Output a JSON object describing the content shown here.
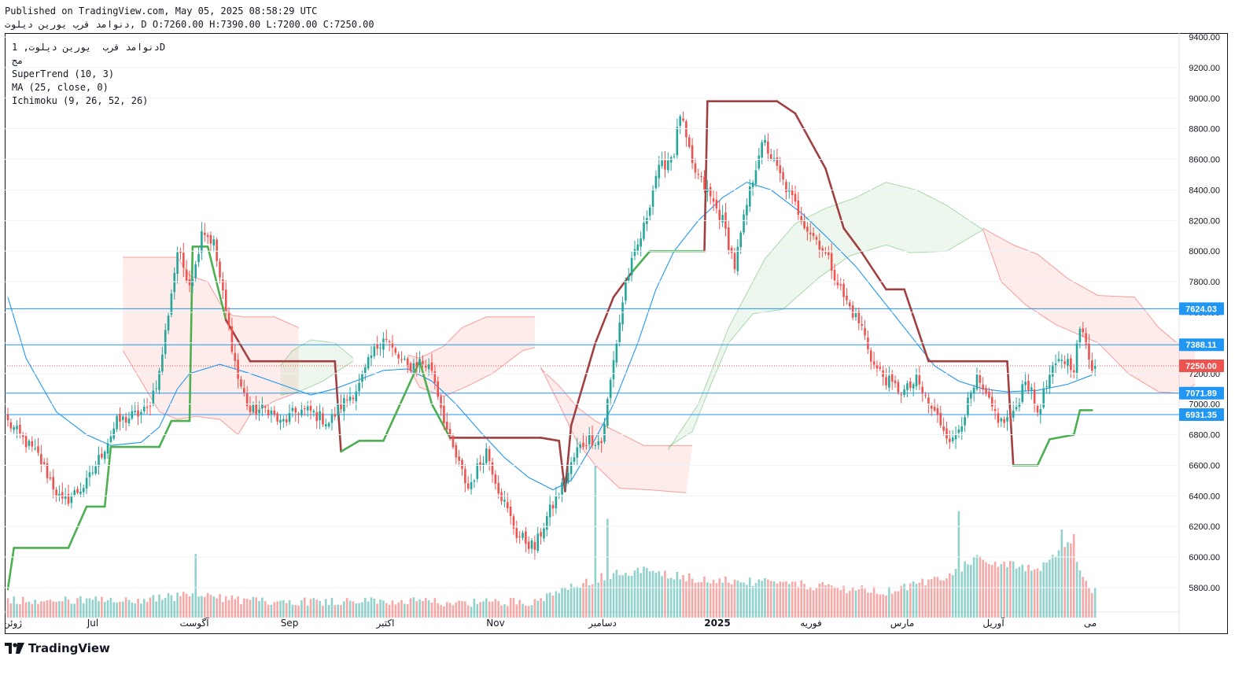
{
  "header": {
    "published": "Published on TradingView.com, May 05, 2025 08:58:29 UTC",
    "ohlc": "دنوامد قرب یورین دیلوت, D O:7260.00 H:7390.00 L:7200.00 C:7250.00"
  },
  "legend": {
    "symbol_line": "دنوامد قرب  یورین دیلوت, 1D",
    "secondary": "مج",
    "indicator_1": "SuperTrend (10, 3)",
    "indicator_2": "MA (25, close, 0)",
    "indicator_3": "Ichimoku (9, 26, 52, 26)"
  },
  "branding": {
    "logo_text": "TradingView"
  },
  "colors": {
    "up": "#26a69a",
    "down": "#ef5350",
    "supertrend_up": "#4caf50",
    "supertrend_down": "#a04040",
    "ma": "#2196f3",
    "hline": "#2196f3",
    "last_price": "#ef5350"
  },
  "chart_data": {
    "type": "candlestick",
    "title": "",
    "y_axis": {
      "min": 5620,
      "max": 9400,
      "ticks": [
        "9400.00",
        "9200.00",
        "9000.00",
        "8800.00",
        "8600.00",
        "8400.00",
        "8200.00",
        "8000.00",
        "7800.00",
        "7600.00",
        "7400.00",
        "7200.00",
        "7000.00",
        "6800.00",
        "6600.00",
        "6400.00",
        "6200.00",
        "6000.00",
        "5800.00"
      ]
    },
    "x_axis": {
      "labels": [
        "ژوئن",
        "Jul",
        "آگوست",
        "Sep",
        "اکتبر",
        "Nov",
        "دسامبر",
        "2025",
        "فوریه",
        "مارس",
        "آوریل",
        "می"
      ]
    },
    "horizontal_lines": [
      7624.03,
      7388.11,
      7071.89,
      6931.35
    ],
    "price_labels": [
      {
        "value": 7624.03,
        "text": "7624.03",
        "color": "#2196f3"
      },
      {
        "value": 7388.11,
        "text": "7388.11",
        "color": "#2196f3"
      },
      {
        "value": 7250.0,
        "text": "7250.00",
        "color": "#ef5350"
      },
      {
        "value": 7071.89,
        "text": "7071.89",
        "color": "#2196f3"
      },
      {
        "value": 6931.35,
        "text": "6931.35",
        "color": "#2196f3"
      }
    ],
    "last_close": 7250.0,
    "price_key_points": [
      [
        0,
        6880
      ],
      [
        10,
        6660
      ],
      [
        18,
        6350
      ],
      [
        26,
        6480
      ],
      [
        36,
        6880
      ],
      [
        46,
        6960
      ],
      [
        50,
        7200
      ],
      [
        56,
        8000
      ],
      [
        60,
        7800
      ],
      [
        62,
        7900
      ],
      [
        64,
        8150
      ],
      [
        68,
        8050
      ],
      [
        72,
        7600
      ],
      [
        76,
        7170
      ],
      [
        80,
        6950
      ],
      [
        86,
        6970
      ],
      [
        90,
        6870
      ],
      [
        96,
        6960
      ],
      [
        100,
        6950
      ],
      [
        106,
        6880
      ],
      [
        110,
        6990
      ],
      [
        116,
        7120
      ],
      [
        120,
        7310
      ],
      [
        124,
        7450
      ],
      [
        128,
        7320
      ],
      [
        132,
        7240
      ],
      [
        136,
        7280
      ],
      [
        140,
        7230
      ],
      [
        146,
        6750
      ],
      [
        152,
        6450
      ],
      [
        158,
        6700
      ],
      [
        162,
        6450
      ],
      [
        168,
        6150
      ],
      [
        174,
        6060
      ],
      [
        178,
        6260
      ],
      [
        184,
        6500
      ],
      [
        188,
        6700
      ],
      [
        192,
        6780
      ],
      [
        196,
        6750
      ],
      [
        200,
        7280
      ],
      [
        204,
        7800
      ],
      [
        210,
        8150
      ],
      [
        214,
        8500
      ],
      [
        220,
        8650
      ],
      [
        222,
        8900
      ],
      [
        226,
        8550
      ],
      [
        232,
        8350
      ],
      [
        236,
        8200
      ],
      [
        240,
        7900
      ],
      [
        244,
        8300
      ],
      [
        248,
        8650
      ],
      [
        250,
        8700
      ],
      [
        256,
        8450
      ],
      [
        260,
        8300
      ],
      [
        264,
        8150
      ],
      [
        268,
        8050
      ],
      [
        272,
        7900
      ],
      [
        276,
        7700
      ],
      [
        282,
        7500
      ],
      [
        286,
        7250
      ],
      [
        292,
        7120
      ],
      [
        296,
        7080
      ],
      [
        300,
        7150
      ],
      [
        304,
        7000
      ],
      [
        308,
        6880
      ],
      [
        312,
        6750
      ],
      [
        316,
        6950
      ],
      [
        320,
        7150
      ],
      [
        324,
        7000
      ],
      [
        328,
        6880
      ],
      [
        332,
        6920
      ],
      [
        336,
        7180
      ],
      [
        340,
        6950
      ],
      [
        344,
        7180
      ],
      [
        348,
        7300
      ],
      [
        352,
        7250
      ],
      [
        354,
        7500
      ],
      [
        358,
        7250
      ]
    ],
    "volume_key_points": [
      [
        0,
        5710
      ],
      [
        40,
        5700
      ],
      [
        60,
        5740
      ],
      [
        80,
        5700
      ],
      [
        120,
        5700
      ],
      [
        150,
        5690
      ],
      [
        175,
        5700
      ],
      [
        185,
        5780
      ],
      [
        198,
        5870
      ],
      [
        210,
        5900
      ],
      [
        230,
        5840
      ],
      [
        260,
        5810
      ],
      [
        290,
        5760
      ],
      [
        310,
        5860
      ],
      [
        320,
        5980
      ],
      [
        340,
        5900
      ],
      [
        350,
        6100
      ],
      [
        358,
        5760
      ]
    ],
    "volume_spikes": [
      [
        62,
        6020
      ],
      [
        194,
        6600
      ],
      [
        198,
        6250
      ],
      [
        314,
        6300
      ],
      [
        348,
        6180
      ],
      [
        352,
        6150
      ]
    ],
    "supertrend": [
      [
        0,
        5790
      ],
      [
        2,
        6060
      ],
      [
        20,
        6060
      ],
      [
        26,
        6330
      ],
      [
        32,
        6330
      ],
      [
        34,
        6720
      ],
      [
        50,
        6720
      ],
      [
        54,
        6890
      ],
      [
        60,
        6890
      ],
      [
        61,
        8030
      ],
      [
        66,
        8030
      ],
      [
        72,
        7550
      ],
      [
        80,
        7280
      ],
      [
        108,
        7280
      ],
      [
        110,
        6690
      ],
      [
        116,
        6760
      ],
      [
        124,
        6760
      ],
      [
        136,
        7280
      ],
      [
        140,
        7000
      ],
      [
        146,
        6780
      ],
      [
        176,
        6780
      ],
      [
        182,
        6760
      ],
      [
        184,
        6430
      ],
      [
        186,
        6860
      ],
      [
        194,
        7400
      ],
      [
        200,
        7700
      ],
      [
        206,
        7860
      ],
      [
        212,
        8000
      ],
      [
        230,
        8000
      ],
      [
        231,
        8980
      ],
      [
        254,
        8980
      ],
      [
        260,
        8900
      ],
      [
        270,
        8540
      ],
      [
        276,
        8150
      ],
      [
        282,
        7990
      ],
      [
        290,
        7750
      ],
      [
        296,
        7750
      ],
      [
        304,
        7280
      ],
      [
        330,
        7280
      ],
      [
        332,
        6600
      ],
      [
        340,
        6600
      ],
      [
        344,
        6770
      ],
      [
        352,
        6800
      ],
      [
        354,
        6960
      ],
      [
        358,
        6960
      ]
    ],
    "ma": [
      [
        0,
        7700
      ],
      [
        6,
        7300
      ],
      [
        16,
        6950
      ],
      [
        26,
        6800
      ],
      [
        34,
        6730
      ],
      [
        44,
        6750
      ],
      [
        50,
        6850
      ],
      [
        56,
        7100
      ],
      [
        60,
        7200
      ],
      [
        70,
        7260
      ],
      [
        80,
        7200
      ],
      [
        90,
        7130
      ],
      [
        100,
        7060
      ],
      [
        108,
        7100
      ],
      [
        116,
        7160
      ],
      [
        124,
        7220
      ],
      [
        132,
        7230
      ],
      [
        140,
        7150
      ],
      [
        148,
        7000
      ],
      [
        156,
        6820
      ],
      [
        164,
        6650
      ],
      [
        172,
        6520
      ],
      [
        180,
        6440
      ],
      [
        186,
        6500
      ],
      [
        192,
        6700
      ],
      [
        200,
        7000
      ],
      [
        208,
        7400
      ],
      [
        214,
        7750
      ],
      [
        220,
        8000
      ],
      [
        228,
        8200
      ],
      [
        236,
        8350
      ],
      [
        244,
        8450
      ],
      [
        252,
        8400
      ],
      [
        262,
        8250
      ],
      [
        270,
        8100
      ],
      [
        280,
        7900
      ],
      [
        288,
        7700
      ],
      [
        298,
        7450
      ],
      [
        306,
        7250
      ],
      [
        314,
        7150
      ],
      [
        322,
        7100
      ],
      [
        330,
        7080
      ],
      [
        340,
        7090
      ],
      [
        350,
        7130
      ],
      [
        358,
        7190
      ]
    ],
    "cloud_red_1": {
      "upper": [
        [
          38,
          7960
        ],
        [
          56,
          7960
        ],
        [
          60,
          7840
        ],
        [
          66,
          7800
        ],
        [
          70,
          7660
        ],
        [
          74,
          7580
        ],
        [
          78,
          7570
        ],
        [
          88,
          7570
        ],
        [
          96,
          7500
        ]
      ],
      "lower": [
        [
          38,
          7350
        ],
        [
          44,
          7150
        ],
        [
          50,
          6950
        ],
        [
          56,
          6900
        ],
        [
          62,
          6920
        ],
        [
          70,
          6900
        ],
        [
          76,
          6800
        ],
        [
          80,
          6930
        ],
        [
          88,
          7020
        ],
        [
          96,
          7080
        ]
      ]
    },
    "cloud_green_1": {
      "upper": [
        [
          90,
          7250
        ],
        [
          94,
          7350
        ],
        [
          100,
          7420
        ],
        [
          108,
          7400
        ],
        [
          114,
          7300
        ]
      ],
      "lower": [
        [
          90,
          7060
        ],
        [
          96,
          7080
        ],
        [
          104,
          7150
        ],
        [
          110,
          7230
        ],
        [
          114,
          7280
        ]
      ]
    },
    "cloud_red_2": {
      "upper": [
        [
          132,
          7320
        ],
        [
          136,
          7300
        ],
        [
          144,
          7380
        ],
        [
          150,
          7500
        ],
        [
          158,
          7570
        ],
        [
          174,
          7570
        ]
      ],
      "lower": [
        [
          132,
          7250
        ],
        [
          136,
          7110
        ],
        [
          144,
          7050
        ],
        [
          152,
          7120
        ],
        [
          160,
          7200
        ],
        [
          170,
          7350
        ],
        [
          174,
          7370
        ]
      ]
    },
    "cloud_red_3": {
      "upper": [
        [
          176,
          7230
        ],
        [
          182,
          7120
        ],
        [
          188,
          6980
        ],
        [
          194,
          6890
        ],
        [
          210,
          6730
        ],
        [
          226,
          6730
        ]
      ],
      "lower": [
        [
          176,
          7240
        ],
        [
          182,
          7000
        ],
        [
          188,
          6750
        ],
        [
          194,
          6600
        ],
        [
          202,
          6450
        ],
        [
          212,
          6440
        ],
        [
          224,
          6420
        ]
      ]
    },
    "cloud_green_2": {
      "upper": [
        [
          218,
          6700
        ],
        [
          228,
          7000
        ],
        [
          238,
          7500
        ],
        [
          250,
          7950
        ],
        [
          260,
          8180
        ],
        [
          270,
          8280
        ],
        [
          280,
          8350
        ],
        [
          290,
          8450
        ],
        [
          300,
          8400
        ],
        [
          310,
          8300
        ],
        [
          322,
          8140
        ]
      ],
      "lower": [
        [
          218,
          6720
        ],
        [
          226,
          6820
        ],
        [
          232,
          7120
        ],
        [
          238,
          7400
        ],
        [
          246,
          7590
        ],
        [
          256,
          7620
        ],
        [
          268,
          7830
        ],
        [
          278,
          7970
        ],
        [
          290,
          8040
        ],
        [
          298,
          7990
        ],
        [
          310,
          8000
        ],
        [
          322,
          8140
        ]
      ]
    },
    "cloud_red_4": {
      "upper": [
        [
          322,
          8150
        ],
        [
          332,
          8040
        ],
        [
          340,
          7980
        ],
        [
          350,
          7820
        ],
        [
          360,
          7710
        ],
        [
          372,
          7700
        ],
        [
          380,
          7500
        ],
        [
          386,
          7400
        ],
        [
          392,
          7350
        ]
      ],
      "lower": [
        [
          322,
          8140
        ],
        [
          328,
          7800
        ],
        [
          336,
          7650
        ],
        [
          346,
          7520
        ],
        [
          360,
          7400
        ],
        [
          370,
          7200
        ],
        [
          380,
          7080
        ],
        [
          388,
          7070
        ],
        [
          392,
          7130
        ]
      ]
    }
  }
}
